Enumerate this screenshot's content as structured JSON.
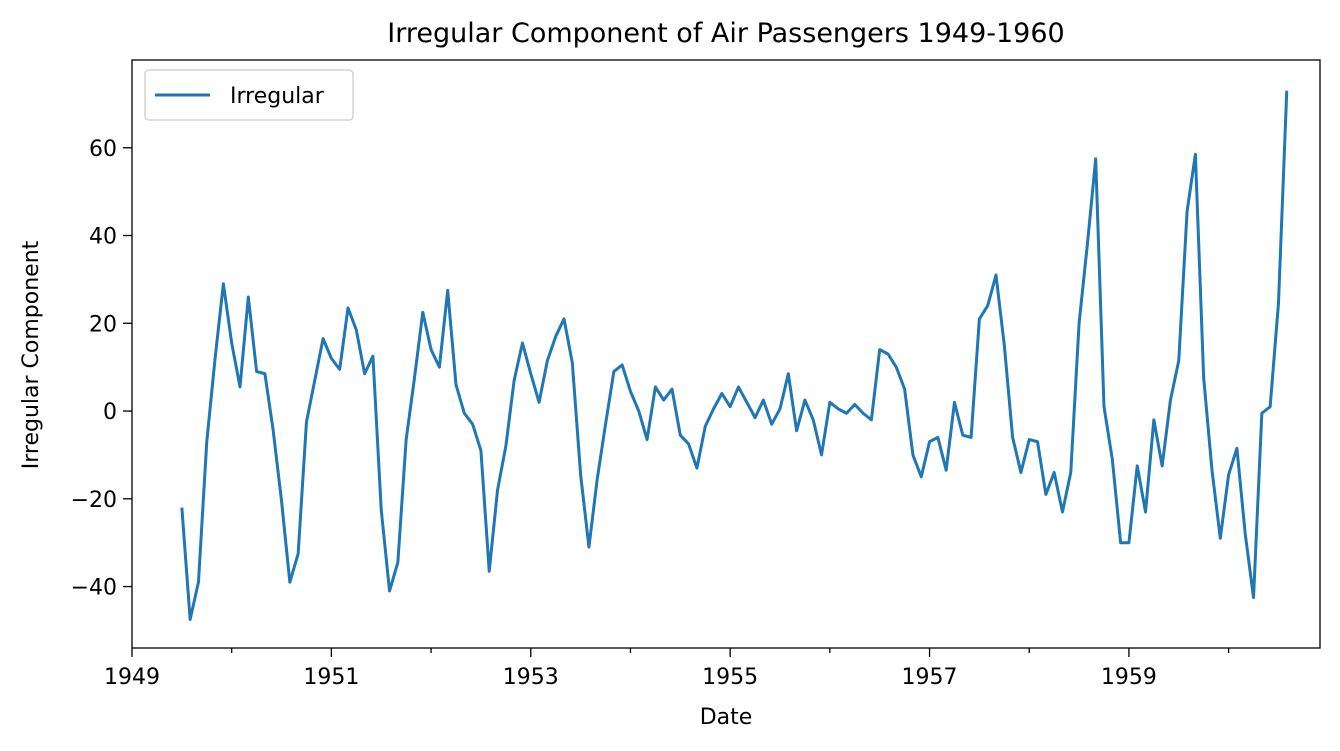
{
  "chart_data": {
    "type": "line",
    "title": "Irregular Component of Air Passengers 1949-1960",
    "xlabel": "Date",
    "ylabel": "Irregular Component",
    "xlim": [
      "1949-01",
      "1960-12"
    ],
    "ylim": [
      -54,
      80
    ],
    "x_major_ticks": [
      "1949",
      "1951",
      "1953",
      "1955",
      "1957",
      "1959"
    ],
    "y_ticks": [
      -40,
      -20,
      0,
      20,
      40,
      60
    ],
    "y_tick_labels": [
      "−40",
      "−20",
      "0",
      "20",
      "40",
      "60"
    ],
    "grid": false,
    "legend": {
      "position": "top-left",
      "entries": [
        "Irregular"
      ]
    },
    "series": [
      {
        "name": "Irregular",
        "color": "#1f77b4",
        "start": "1949-07",
        "frequency": "monthly",
        "values": [
          -22.0,
          -47.5,
          -39.0,
          -7.0,
          12.0,
          29.0,
          15.5,
          5.5,
          26.0,
          9.0,
          8.5,
          -4.5,
          -20.5,
          -39.0,
          -32.5,
          -2.5,
          7.0,
          16.5,
          12.0,
          9.5,
          23.5,
          18.5,
          8.5,
          12.5,
          -22.5,
          -41.0,
          -34.5,
          -6.5,
          7.5,
          22.5,
          14.0,
          10.0,
          27.5,
          6.0,
          -0.5,
          -3.0,
          -9.0,
          -36.5,
          -18.0,
          -8.0,
          7.0,
          15.5,
          8.5,
          2.0,
          11.5,
          17.0,
          21.0,
          11.0,
          -14.5,
          -31.0,
          -15.5,
          -3.0,
          9.0,
          10.5,
          4.5,
          0.0,
          -6.5,
          5.5,
          2.5,
          5.0,
          -5.5,
          -7.5,
          -13.0,
          -3.5,
          0.5,
          4.0,
          1.0,
          5.5,
          2.0,
          -1.5,
          2.5,
          -3.0,
          0.5,
          8.5,
          -4.5,
          2.5,
          -2.0,
          -10.0,
          2.0,
          0.5,
          -0.5,
          1.5,
          -0.5,
          -2.0,
          14.0,
          13.0,
          10.0,
          5.0,
          -10.0,
          -15.0,
          -7.0,
          -6.0,
          -13.5,
          2.0,
          -5.5,
          -6.0,
          21.0,
          24.0,
          31.0,
          15.0,
          -6.0,
          -14.0,
          -6.5,
          -7.0,
          -19.0,
          -14.0,
          -23.0,
          -14.0,
          20.0,
          38.0,
          57.5,
          1.0,
          -11.0,
          -30.0,
          -30.0,
          -12.5,
          -23.0,
          -2.0,
          -12.5,
          2.5,
          11.5,
          45.5,
          58.5,
          7.5,
          -13.5,
          -29.0,
          -14.5,
          -8.5,
          -28.0,
          -42.5,
          -0.5,
          1.0,
          24.5,
          73.0
        ]
      }
    ]
  }
}
